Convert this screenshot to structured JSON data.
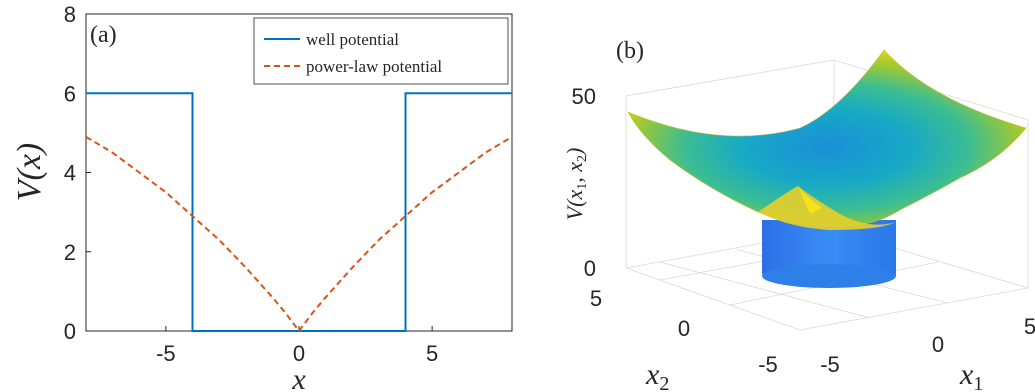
{
  "chart_data": [
    {
      "type": "line",
      "panel_label": "(a)",
      "xlabel": "x",
      "ylabel": "V(x)",
      "xlim": [
        -8,
        8
      ],
      "ylim": [
        0,
        8
      ],
      "xticks": [
        -5,
        0,
        5
      ],
      "yticks": [
        0,
        2,
        4,
        6,
        8
      ],
      "legend_position": "top-right",
      "series": [
        {
          "name": "well potential",
          "style": "solid",
          "color": "#0072BD",
          "x": [
            -8,
            -4,
            -4,
            4,
            4,
            8
          ],
          "y": [
            6,
            6,
            0,
            0,
            6,
            6
          ]
        },
        {
          "name": "power-law potential",
          "style": "dashed",
          "color": "#D95319",
          "x": [
            -8,
            -7,
            -6,
            -5,
            -4,
            -3,
            -2,
            -1,
            -0.5,
            0,
            0.5,
            1,
            2,
            3,
            4,
            5,
            6,
            7,
            8
          ],
          "y": [
            4.9,
            4.5,
            4.0,
            3.5,
            2.9,
            2.3,
            1.6,
            0.85,
            0.45,
            0,
            0.45,
            0.85,
            1.6,
            2.3,
            2.9,
            3.5,
            4.0,
            4.5,
            4.9
          ]
        }
      ]
    },
    {
      "type": "surface",
      "panel_label": "(b)",
      "xlabel": "x_1",
      "ylabel": "x_2",
      "zlabel": "V(x_1, x_2)",
      "xlim": [
        -7,
        7
      ],
      "ylim": [
        -7,
        7
      ],
      "zlim": [
        0,
        50
      ],
      "xticks": [
        -5,
        0,
        5
      ],
      "yticks": [
        -5,
        0,
        5
      ],
      "zticks": [
        0,
        50
      ],
      "colormap": "parula",
      "description": "rotationally symmetric potential rising quadratically away from center with a square well of radius ~4 dropping to the floor"
    }
  ]
}
